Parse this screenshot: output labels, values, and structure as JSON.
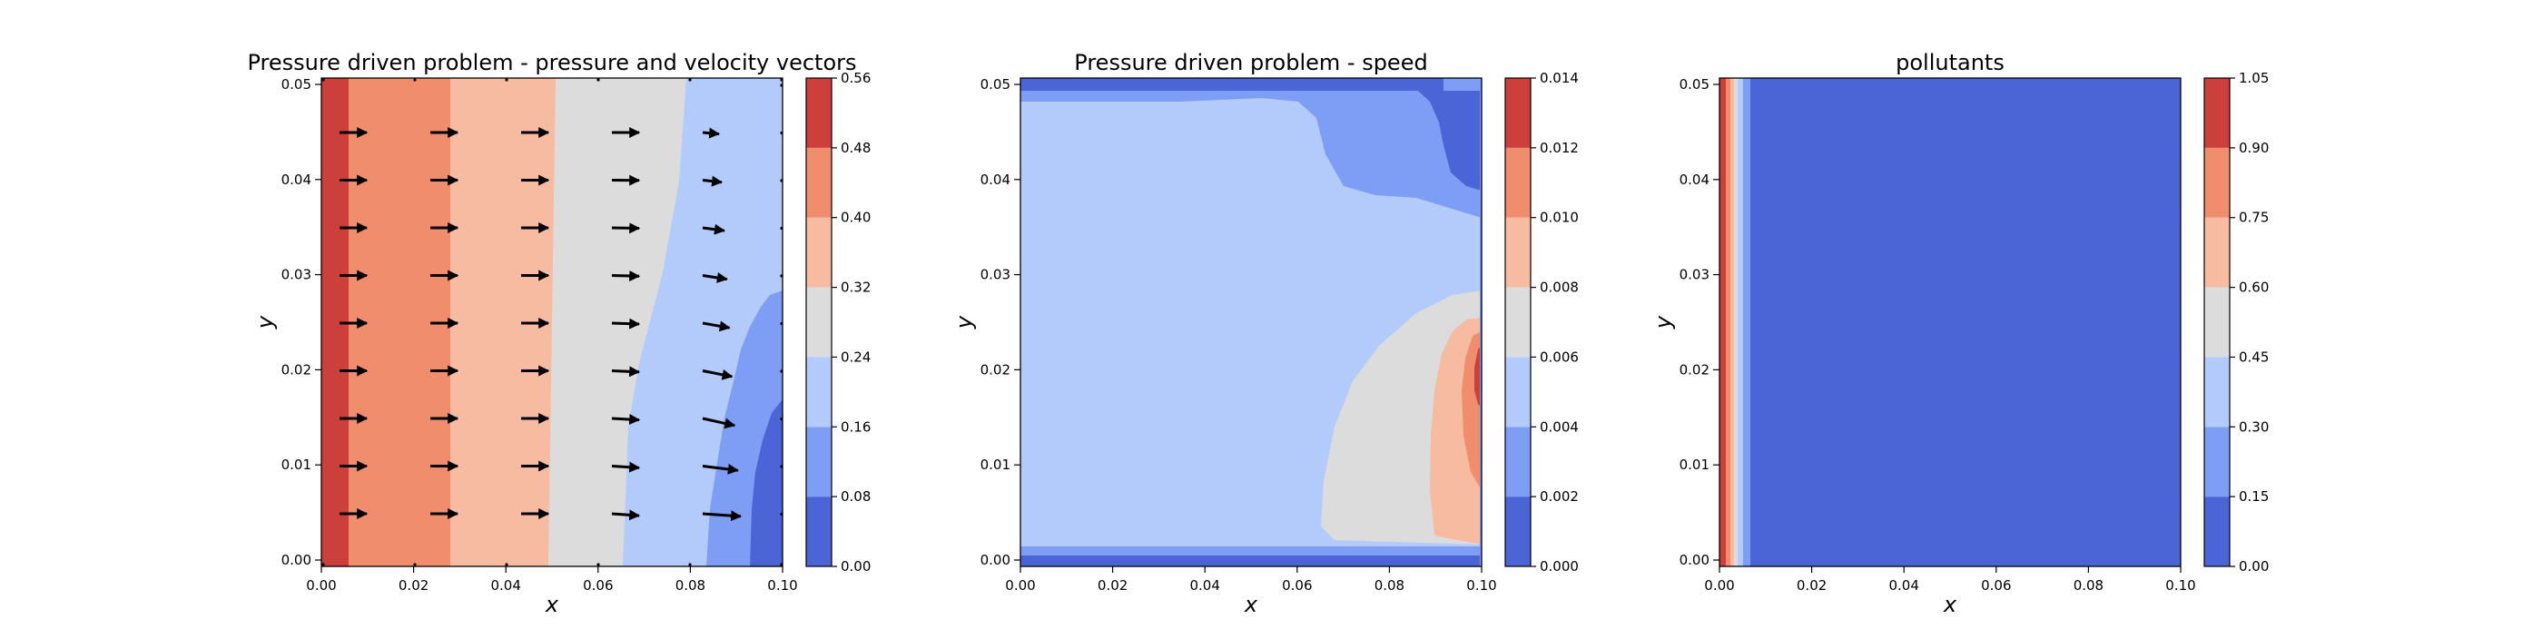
{
  "chart_data": [
    {
      "type": "contour",
      "title": "Pressure driven problem - pressure and velocity vectors",
      "xlabel": "x",
      "ylabel": "y",
      "xlim": [
        0,
        0.1
      ],
      "ylim": [
        0,
        0.05
      ],
      "xticks": [
        "0.00",
        "0.02",
        "0.04",
        "0.06",
        "0.08",
        "0.10"
      ],
      "yticks": [
        "0.00",
        "0.01",
        "0.02",
        "0.03",
        "0.04",
        "0.05"
      ],
      "colorbar": {
        "levels": [
          0.0,
          0.08,
          0.16,
          0.24,
          0.32,
          0.4,
          0.48,
          0.56
        ],
        "ticks": [
          "0.00",
          "0.08",
          "0.16",
          "0.24",
          "0.32",
          "0.40",
          "0.48",
          "0.56"
        ]
      },
      "has_vectors": true
    },
    {
      "type": "contour",
      "title": "Pressure driven problem - speed",
      "xlabel": "x",
      "ylabel": "y",
      "xlim": [
        0,
        0.1
      ],
      "ylim": [
        0,
        0.05
      ],
      "xticks": [
        "0.00",
        "0.02",
        "0.04",
        "0.06",
        "0.08",
        "0.10"
      ],
      "yticks": [
        "0.00",
        "0.01",
        "0.02",
        "0.03",
        "0.04",
        "0.05"
      ],
      "colorbar": {
        "levels": [
          0.0,
          0.002,
          0.004,
          0.006,
          0.008,
          0.01,
          0.012,
          0.014
        ],
        "ticks": [
          "0.000",
          "0.002",
          "0.004",
          "0.006",
          "0.008",
          "0.010",
          "0.012",
          "0.014"
        ]
      },
      "has_vectors": false
    },
    {
      "type": "contour",
      "title": "pollutants",
      "xlabel": "x",
      "ylabel": "y",
      "xlim": [
        0,
        0.1
      ],
      "ylim": [
        0,
        0.05
      ],
      "xticks": [
        "0.00",
        "0.02",
        "0.04",
        "0.06",
        "0.08",
        "0.10"
      ],
      "yticks": [
        "0.00",
        "0.01",
        "0.02",
        "0.03",
        "0.04",
        "0.05"
      ],
      "colorbar": {
        "levels": [
          0.0,
          0.15,
          0.3,
          0.45,
          0.6,
          0.75,
          0.9,
          1.05
        ],
        "ticks": [
          "0.00",
          "0.15",
          "0.30",
          "0.45",
          "0.60",
          "0.75",
          "0.90",
          "1.05"
        ]
      },
      "has_vectors": false
    }
  ],
  "colormap": [
    "#4b65d6",
    "#7e9ef5",
    "#b3cbfb",
    "#dcdcdc",
    "#f6bba1",
    "#f08d6d",
    "#cc3f3a"
  ]
}
